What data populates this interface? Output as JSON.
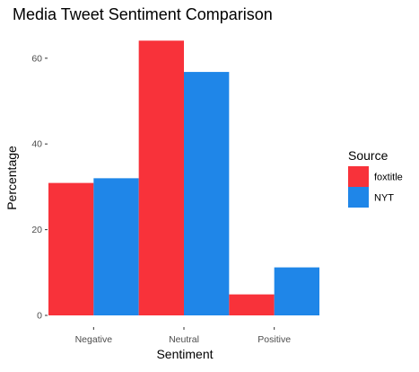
{
  "chart_data": {
    "type": "bar",
    "title": "Media Tweet Sentiment Comparison",
    "xlabel": "Sentiment",
    "ylabel": "Percentage",
    "categories": [
      "Negative",
      "Neutral",
      "Positive"
    ],
    "series": [
      {
        "name": "foxtitle",
        "color": "#f8323a",
        "values": [
          30.9,
          64.1,
          4.9
        ]
      },
      {
        "name": "NYT",
        "color": "#1f86e8",
        "values": [
          32.0,
          56.8,
          11.2
        ]
      }
    ],
    "ylim": [
      0,
      67
    ],
    "yticks": [
      0,
      20,
      40,
      60
    ],
    "grid": false,
    "legend": {
      "title": "Source",
      "position": "right"
    }
  }
}
